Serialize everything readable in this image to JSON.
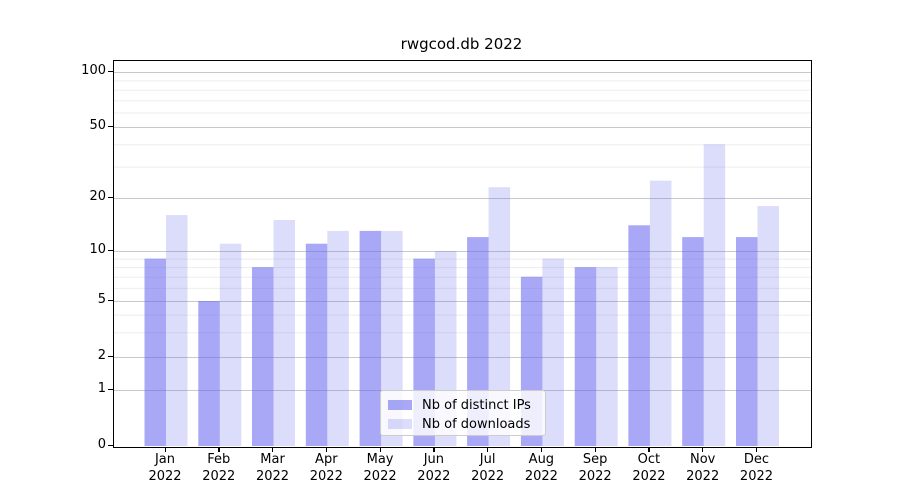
{
  "chart_data": {
    "type": "bar",
    "title": "rwgcod.db 2022",
    "categories": [
      "Jan",
      "Feb",
      "Mar",
      "Apr",
      "May",
      "Jun",
      "Jul",
      "Aug",
      "Sep",
      "Oct",
      "Nov",
      "Dec"
    ],
    "category_year": "2022",
    "series": [
      {
        "name": "Nb of distinct IPs",
        "color": "#6060ee",
        "fill_opacity": 0.55,
        "values": [
          9,
          5,
          8,
          11,
          13,
          9,
          12,
          7,
          8,
          14,
          12,
          12
        ]
      },
      {
        "name": "Nb of downloads",
        "color": "#6060ee",
        "fill_opacity": 0.22,
        "values": [
          16,
          11,
          15,
          13,
          13,
          10,
          23,
          9,
          8,
          25,
          40,
          18
        ]
      }
    ],
    "y_axis": {
      "scale": "symlog",
      "major_ticks": [
        0,
        1,
        2,
        5,
        10,
        20,
        50,
        100
      ],
      "minor_ticks": [
        3,
        4,
        6,
        7,
        8,
        9,
        30,
        40,
        60,
        70,
        80,
        90
      ],
      "range": [
        0,
        140
      ]
    },
    "xlabel": "",
    "ylabel": "",
    "grid": {
      "enabled": true,
      "major_color": "#c9c9c9",
      "minor_color": "#ededed"
    },
    "axis_color": "#000000",
    "legend": {
      "position": "lower center"
    }
  }
}
